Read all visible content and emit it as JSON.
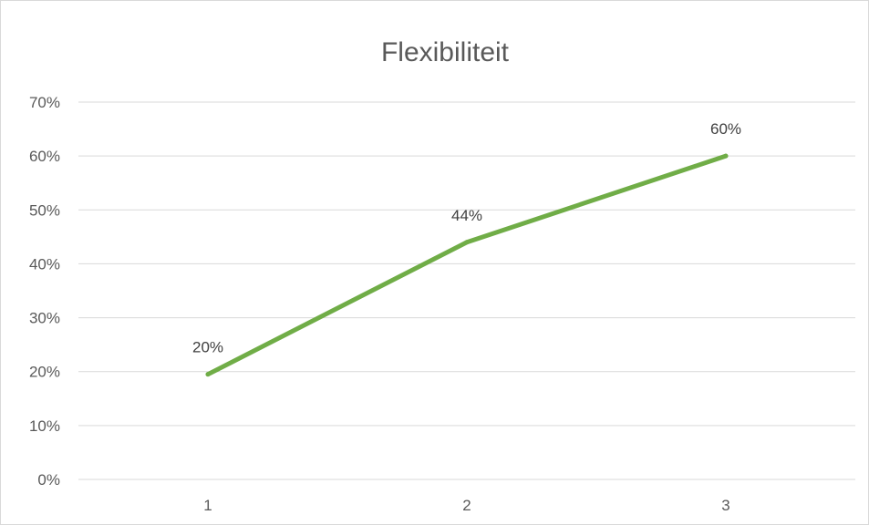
{
  "chart_data": {
    "type": "line",
    "title": "Flexibiliteit",
    "categories": [
      "1",
      "2",
      "3"
    ],
    "series": [
      {
        "values": [
          0.195,
          0.44,
          0.6
        ],
        "labels": [
          "20%",
          "44%",
          "60%"
        ]
      }
    ],
    "ylim": [
      0,
      0.7
    ],
    "yticks": [
      0,
      0.1,
      0.2,
      0.3,
      0.4,
      0.5,
      0.6,
      0.7
    ],
    "ytick_labels": [
      "0%",
      "10%",
      "20%",
      "30%",
      "40%",
      "50%",
      "60%",
      "70%"
    ],
    "xlabel": "",
    "ylabel": "",
    "grid": true,
    "legend": "none",
    "colors": {
      "series": "#70ad47",
      "grid": "#d9d9d9",
      "text": "#595959"
    }
  }
}
